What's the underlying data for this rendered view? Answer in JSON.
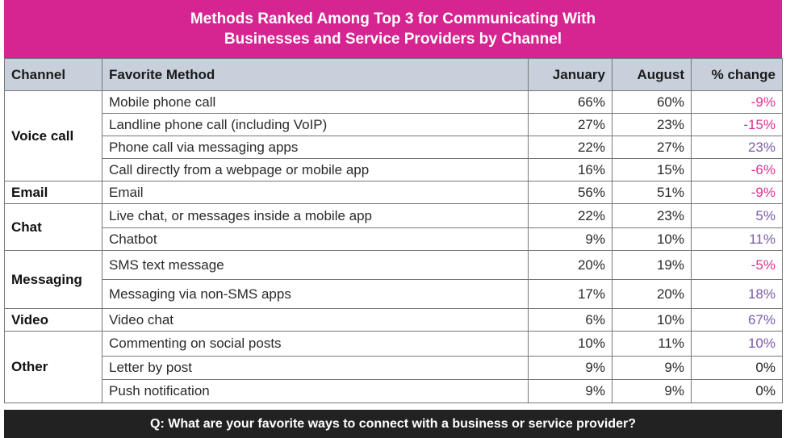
{
  "title_line1": "Methods Ranked Among Top 3 for Communicating With",
  "title_line2": "Businesses and Service Providers by Channel",
  "footer": "Q: What are your favorite ways to connect with a business or service provider?",
  "colors": {
    "title_bg": "#d62490",
    "header_bg": "#c8d0dc",
    "negative": "#e0308e",
    "positive": "#7a5aa8",
    "footer_bg": "#222222"
  },
  "chart_data": {
    "type": "table",
    "columns": [
      "Channel",
      "Favorite Method",
      "January",
      "August",
      "% change"
    ],
    "groups": [
      {
        "channel": "Voice call",
        "rows": [
          {
            "method": "Mobile phone call",
            "january": "66%",
            "august": "60%",
            "change": "-9%"
          },
          {
            "method": "Landline phone call (including VoIP)",
            "january": "27%",
            "august": "23%",
            "change": "-15%"
          },
          {
            "method": "Phone call via messaging apps",
            "january": "22%",
            "august": "27%",
            "change": "23%"
          },
          {
            "method": "Call directly from a webpage or mobile app",
            "january": "16%",
            "august": "15%",
            "change": "-6%"
          }
        ]
      },
      {
        "channel": "Email",
        "rows": [
          {
            "method": "Email",
            "january": "56%",
            "august": "51%",
            "change": "-9%"
          }
        ]
      },
      {
        "channel": "Chat",
        "rows": [
          {
            "method": "Live chat, or messages inside a mobile app",
            "january": "22%",
            "august": "23%",
            "change": "5%"
          },
          {
            "method": "Chatbot",
            "january": "9%",
            "august": "10%",
            "change": "11%"
          }
        ]
      },
      {
        "channel": "Messaging",
        "rows": [
          {
            "method": "SMS text message",
            "january": "20%",
            "august": "19%",
            "change": "-5%"
          },
          {
            "method": "Messaging via non-SMS apps",
            "january": "17%",
            "august": "20%",
            "change": "18%"
          }
        ]
      },
      {
        "channel": "Video",
        "rows": [
          {
            "method": "Video chat",
            "january": "6%",
            "august": "10%",
            "change": "67%"
          }
        ]
      },
      {
        "channel": "Other",
        "rows": [
          {
            "method": "Commenting on social posts",
            "january": "10%",
            "august": "11%",
            "change": "10%"
          },
          {
            "method": "Letter by post",
            "january": "9%",
            "august": "9%",
            "change": "0%"
          },
          {
            "method": "Push notification",
            "january": "9%",
            "august": "9%",
            "change": "0%"
          }
        ]
      }
    ]
  }
}
